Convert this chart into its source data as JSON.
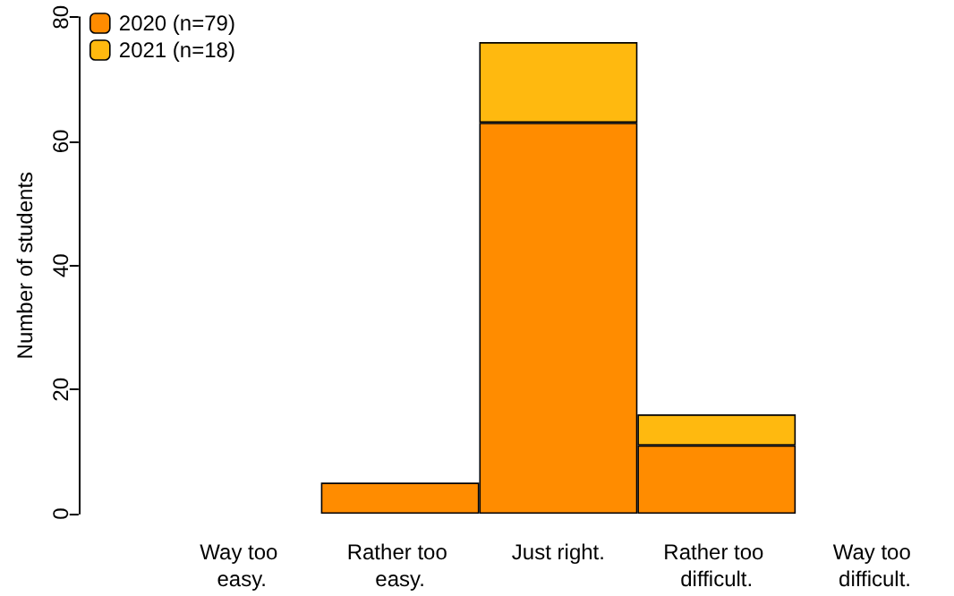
{
  "chart_data": {
    "type": "bar",
    "stacked": true,
    "ylabel": "Number of students",
    "categories": [
      "Way too easy.",
      "Rather too easy.",
      "Just right.",
      "Rather too difficult.",
      "Way too difficult."
    ],
    "series": [
      {
        "name": "2020 (n=79)",
        "color": "#ff8c00",
        "values": [
          0,
          5,
          63,
          11,
          0
        ]
      },
      {
        "name": "2021 (n=18)",
        "color": "#ffb90f",
        "values": [
          0,
          0,
          13,
          5,
          0
        ]
      }
    ],
    "ylim": [
      0,
      80
    ],
    "yticks": [
      0,
      20,
      40,
      60,
      80
    ],
    "grid": false,
    "legend": "top left"
  }
}
